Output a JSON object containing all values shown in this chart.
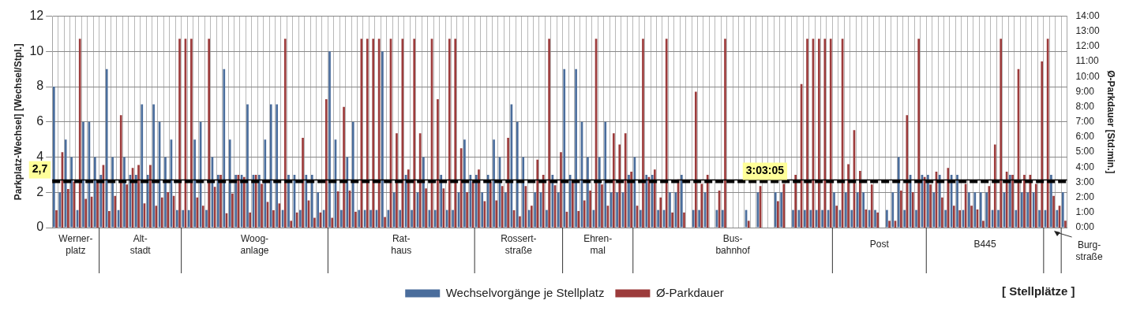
{
  "chart_data": {
    "type": "bar",
    "ylabel": "Parkplatz-Wechsel] [Wechsel/Stpl.]",
    "y2label": "Ø-Parkdauer [Std:min.]",
    "categories": [
      null,
      null,
      null,
      null,
      null,
      null,
      null,
      null,
      null,
      null,
      null,
      null,
      null,
      null,
      null,
      null,
      null,
      null,
      null,
      null,
      null,
      null,
      null,
      null,
      null,
      null,
      null,
      null,
      null,
      null,
      null,
      null,
      null,
      null,
      null,
      null,
      null,
      null,
      null,
      null,
      null,
      null,
      null,
      null,
      null,
      null,
      null,
      null,
      null,
      null,
      null,
      null,
      null,
      null,
      null,
      null,
      null,
      null,
      null,
      null,
      null,
      null,
      null,
      null,
      null,
      null,
      null,
      null,
      null,
      null,
      null,
      null,
      null,
      null,
      null,
      null,
      null,
      null,
      null,
      null,
      null,
      null,
      null,
      null,
      null,
      null,
      null,
      null,
      null,
      null,
      null,
      null,
      null,
      null,
      null,
      null,
      null,
      null,
      null,
      null,
      null,
      null,
      null,
      null,
      null,
      null,
      null,
      null,
      null,
      null,
      null,
      null,
      null,
      null,
      null,
      null,
      null,
      null,
      null,
      null,
      null,
      null,
      null,
      null,
      null,
      null,
      null,
      null,
      null,
      null,
      null,
      null,
      null,
      null,
      null,
      null,
      null,
      null,
      null,
      null,
      null,
      null,
      null,
      null,
      null,
      null,
      null,
      null,
      null,
      null,
      null,
      null,
      null,
      null,
      null,
      null,
      null,
      null,
      null,
      null,
      null,
      null,
      null,
      null,
      null,
      null,
      null,
      null,
      null,
      null,
      null,
      null,
      null
    ],
    "series": [
      {
        "name": "Wechselvorgänge je Stellplatz",
        "color": "#4a6d9c",
        "values": [
          8,
          2,
          5,
          4,
          1,
          6,
          6,
          4,
          3,
          9,
          4,
          1,
          4,
          3,
          3,
          7,
          3,
          7,
          6,
          4,
          5,
          1,
          1,
          1,
          5,
          6,
          1,
          4,
          3,
          9,
          5,
          3,
          3,
          7,
          3,
          3,
          5,
          7,
          7,
          1,
          3,
          3,
          1,
          3,
          3,
          2,
          1,
          10,
          5,
          1,
          4,
          6,
          1,
          1,
          1,
          1,
          10,
          1,
          2,
          1,
          3,
          1,
          2,
          4,
          1,
          1,
          3,
          1,
          1,
          2,
          5,
          3,
          3,
          2,
          3,
          5,
          4,
          2,
          7,
          6,
          4,
          1,
          2,
          2,
          1,
          3,
          2,
          9,
          3,
          9,
          6,
          4,
          1,
          4,
          6,
          2,
          2,
          2,
          3,
          4,
          1,
          3,
          3,
          1,
          1,
          2,
          2,
          3,
          0,
          1,
          1,
          2,
          0,
          1,
          1,
          0,
          0,
          0,
          1,
          0,
          2,
          0,
          0,
          2,
          2,
          0,
          1,
          1,
          1,
          1,
          1,
          1,
          1,
          2,
          1,
          2,
          1,
          2,
          2,
          1,
          1,
          0,
          1,
          2,
          4,
          1,
          3,
          1,
          3,
          3,
          2,
          3,
          1,
          3,
          3,
          1,
          2,
          2,
          2,
          2,
          1,
          1,
          2,
          3,
          1,
          2,
          2,
          2,
          1,
          1,
          3,
          1,
          2
        ]
      },
      {
        "name": "Ø-Parkdauer",
        "color": "#9c3b3b",
        "axis": "y2",
        "values": [
          1.15,
          5,
          2.55,
          3.05,
          12.5,
          1.9,
          2.05,
          3.15,
          4.15,
          1.1,
          2.1,
          7.45,
          2.85,
          3.95,
          4.15,
          1.6,
          4.15,
          1.45,
          2,
          2.35,
          2.1,
          12.5,
          12.5,
          12.5,
          2,
          1.45,
          12.5,
          2.7,
          3.5,
          0.95,
          2.25,
          3.5,
          3.35,
          1,
          3.5,
          2.9,
          1.7,
          1.15,
          1.6,
          12.5,
          0.45,
          1,
          5.95,
          1.8,
          0.65,
          1,
          8.5,
          0.65,
          2.4,
          8,
          2.45,
          1.05,
          12.5,
          12.5,
          12.5,
          12.5,
          0.7,
          12.5,
          6.25,
          12.5,
          3.85,
          12.5,
          6.25,
          2.6,
          12.5,
          8.5,
          2.6,
          12.5,
          12.5,
          5.25,
          2.35,
          3.05,
          3.85,
          1.75,
          3.05,
          1.8,
          2.75,
          5.95,
          1.15,
          0.75,
          2.75,
          1.45,
          4.5,
          3.5,
          12.5,
          2.8,
          5,
          1.05,
          3.2,
          1.1,
          1.8,
          2.45,
          12.5,
          2.85,
          1.45,
          6.25,
          5.5,
          6.25,
          3.7,
          1.45,
          12.5,
          3.35,
          3.85,
          2,
          12.5,
          1,
          3.2,
          1,
          0,
          9,
          2.9,
          3.5,
          0,
          2.45,
          12.5,
          0,
          0,
          0,
          0.45,
          0,
          2.75,
          0,
          0,
          1.75,
          2.9,
          0,
          3.5,
          9.5,
          12.5,
          12.5,
          12.5,
          12.5,
          12.5,
          1.45,
          12.5,
          4.2,
          6.45,
          3.75,
          1.2,
          2.85,
          1,
          0,
          0.45,
          0.45,
          2.45,
          7.45,
          2.35,
          12.5,
          3.35,
          2.85,
          3.7,
          2,
          3.95,
          1.45,
          1.15,
          2.9,
          1.45,
          1.2,
          0.45,
          2.75,
          5.5,
          12.5,
          3.7,
          3.5,
          10.5,
          3.5,
          3.5,
          2.9,
          11,
          12.5,
          2.1,
          1.45,
          0.45
        ]
      }
    ],
    "ylim": [
      0,
      12
    ],
    "yticks": [
      0,
      2,
      4,
      6,
      8,
      10,
      12
    ],
    "y2lim": [
      0,
      14
    ],
    "y2ticks": [
      {
        "value": 0,
        "label": "0:00"
      },
      {
        "value": 1,
        "label": "1:00"
      },
      {
        "value": 2,
        "label": "2:00"
      },
      {
        "value": 3,
        "label": "3:00"
      },
      {
        "value": 4,
        "label": "4:00"
      },
      {
        "value": 5,
        "label": "5:00"
      },
      {
        "value": 6,
        "label": "6:00"
      },
      {
        "value": 7,
        "label": "7:00"
      },
      {
        "value": 8,
        "label": "8:00"
      },
      {
        "value": 9,
        "label": "9:00"
      },
      {
        "value": 10,
        "label": "10:00"
      },
      {
        "value": 11,
        "label": "11:00"
      },
      {
        "value": 12,
        "label": "12:00"
      },
      {
        "value": 13,
        "label": "13:00"
      },
      {
        "value": 14,
        "label": "14:00"
      }
    ],
    "ref_lines": [
      {
        "axis": "y",
        "value": 2.7,
        "label": "2,7",
        "color": "#000000",
        "line_style": "solid"
      },
      {
        "axis": "y2",
        "value": 3.05,
        "label": "3:03:05",
        "color": "#000000",
        "line_style": "dashed"
      }
    ],
    "annotations": [
      "Werner-\nplatz",
      "Alt-\nstadt",
      "Woog-\nanlage",
      "Rat-\nhaus",
      "Rossert-\nstraße",
      "Ehren-\nmal",
      "Bus-\nbahnhof",
      "Post",
      "B445",
      "Burg-\nstraße",
      "[ Stellplätze ]"
    ],
    "grid": true,
    "legend": "bottom"
  }
}
